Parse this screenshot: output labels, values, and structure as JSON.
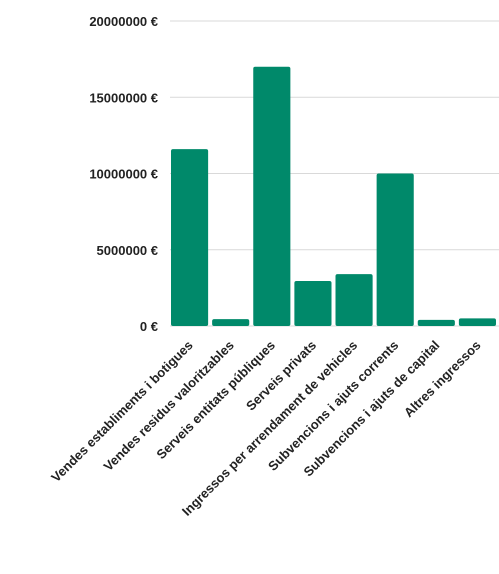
{
  "chart_data": {
    "type": "bar",
    "title": "",
    "xlabel": "",
    "ylabel": "",
    "categories": [
      "Vendes establiments i botigues",
      "Vendes residus valoritzables",
      "Serveis entitats públiques",
      "Serveis privats",
      "Ingressos per arrendament de vehicles",
      "Subvencions i ajuts corrents",
      "Subvencions i ajuts de capital",
      "Altres ingressos"
    ],
    "values": [
      11600000,
      450000,
      17000000,
      2950000,
      3400000,
      10000000,
      400000,
      500000
    ],
    "ylim": [
      0,
      20000000
    ],
    "yticks": [
      0,
      5000000,
      10000000,
      15000000,
      20000000
    ],
    "ytick_labels": [
      "0 €",
      "5000000 €",
      "10000000 €",
      "15000000 €",
      "20000000 €"
    ],
    "grid": true,
    "legend": "none",
    "bar_color": "#00896a",
    "grid_color": "#d9d9d9"
  }
}
